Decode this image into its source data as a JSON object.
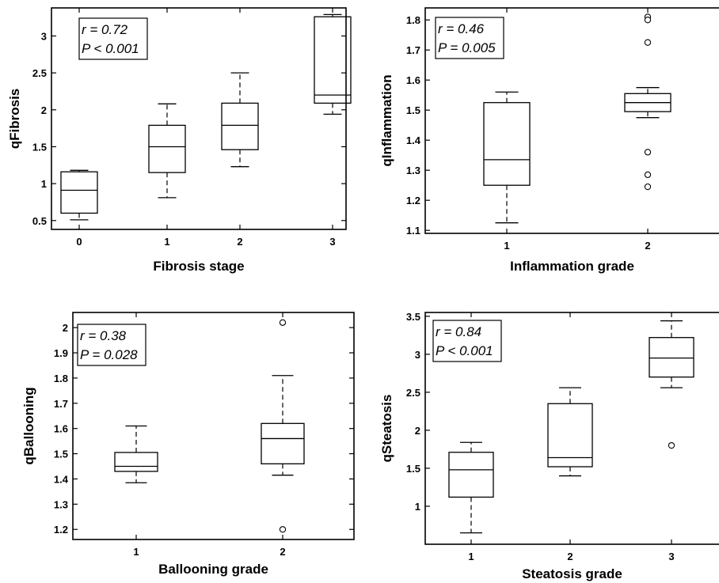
{
  "chart_data": [
    {
      "type": "box",
      "id": "fibrosis",
      "xlabel": "Fibrosis stage",
      "ylabel": "qFibrosis",
      "categories": [
        "0",
        "1",
        "2",
        "3"
      ],
      "yticks": [
        "0.5",
        "1",
        "1.5",
        "2",
        "2.5",
        "3"
      ],
      "ylim": [
        0.38,
        3.38
      ],
      "annotation": [
        "r = 0.72",
        "P < 0.001"
      ],
      "boxes": [
        {
          "min": 0.51,
          "q1": 0.6,
          "median": 0.91,
          "q3": 1.16,
          "max": 1.18,
          "outliers": []
        },
        {
          "min": 0.81,
          "q1": 1.15,
          "median": 1.5,
          "q3": 1.79,
          "max": 2.08,
          "outliers": []
        },
        {
          "min": 1.23,
          "q1": 1.46,
          "median": 1.79,
          "q3": 2.09,
          "max": 2.5,
          "outliers": []
        },
        {
          "min": 1.94,
          "q1": 2.09,
          "median": 2.2,
          "q3": 3.26,
          "max": 3.29,
          "outliers": []
        }
      ]
    },
    {
      "type": "box",
      "id": "inflammation",
      "xlabel": "Inflammation grade",
      "ylabel": "qInflammation",
      "categories": [
        "1",
        "2"
      ],
      "yticks": [
        "1.1",
        "1.2",
        "1.3",
        "1.4",
        "1.5",
        "1.6",
        "1.7",
        "1.8"
      ],
      "ylim": [
        1.09,
        1.84
      ],
      "annotation": [
        "r = 0.46",
        "P = 0.005"
      ],
      "boxes": [
        {
          "min": 1.125,
          "q1": 1.25,
          "median": 1.335,
          "q3": 1.525,
          "max": 1.56,
          "outliers": []
        },
        {
          "min": 1.475,
          "q1": 1.495,
          "median": 1.525,
          "q3": 1.555,
          "max": 1.575,
          "outliers": [
            1.81,
            1.8,
            1.725,
            1.36,
            1.285,
            1.245
          ]
        }
      ]
    },
    {
      "type": "box",
      "id": "ballooning",
      "xlabel": "Ballooning grade",
      "ylabel": "qBallooning",
      "categories": [
        "1",
        "2"
      ],
      "yticks": [
        "1.2",
        "1.3",
        "1.4",
        "1.5",
        "1.6",
        "1.7",
        "1.8",
        "1.9",
        "2"
      ],
      "ylim": [
        1.16,
        2.06
      ],
      "annotation": [
        "r = 0.38",
        "P = 0.028"
      ],
      "boxes": [
        {
          "min": 1.385,
          "q1": 1.43,
          "median": 1.45,
          "q3": 1.505,
          "max": 1.61,
          "outliers": []
        },
        {
          "min": 1.415,
          "q1": 1.46,
          "median": 1.56,
          "q3": 1.62,
          "max": 1.81,
          "outliers": [
            2.02,
            1.2
          ]
        }
      ]
    },
    {
      "type": "box",
      "id": "steatosis",
      "xlabel": "Steatosis grade",
      "ylabel": "qSteatosis",
      "categories": [
        "1",
        "2",
        "3"
      ],
      "yticks": [
        "1",
        "1.5",
        "2",
        "2.5",
        "3",
        "3.5"
      ],
      "ylim": [
        0.5,
        3.55
      ],
      "annotation": [
        "r = 0.84",
        "P < 0.001"
      ],
      "boxes": [
        {
          "min": 0.65,
          "q1": 1.12,
          "median": 1.48,
          "q3": 1.71,
          "max": 1.84,
          "outliers": []
        },
        {
          "min": 1.4,
          "q1": 1.52,
          "median": 1.64,
          "q3": 2.35,
          "max": 2.56,
          "outliers": []
        },
        {
          "min": 2.56,
          "q1": 2.7,
          "median": 2.95,
          "q3": 3.22,
          "max": 3.44,
          "outliers": [
            1.8
          ]
        }
      ]
    }
  ]
}
